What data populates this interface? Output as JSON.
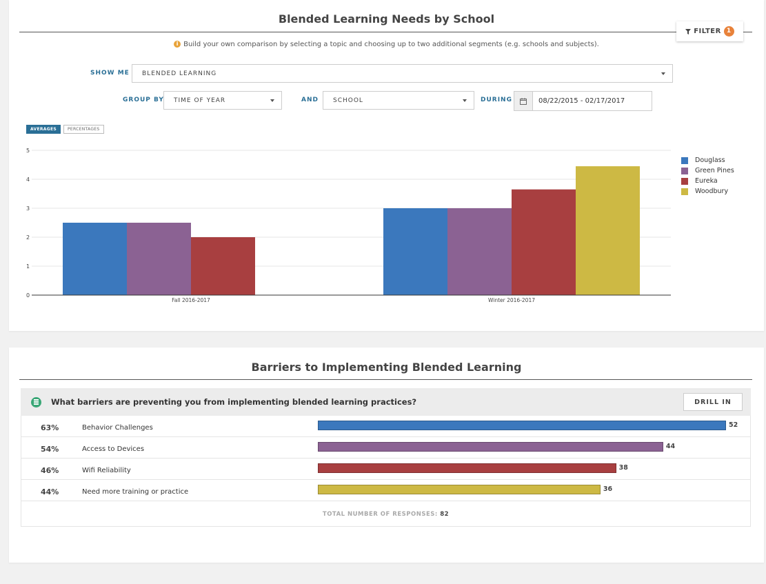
{
  "panel1": {
    "title": "Blended Learning Needs by School",
    "filter": {
      "label": "FILTER",
      "badge": "1",
      "icon": "funnel-icon"
    },
    "info_text": "Build your own comparison by selecting a topic and choosing up to two additional segments (e.g. schools and subjects).",
    "show_me": {
      "label": "SHOW ME",
      "value": "BLENDED LEARNING"
    },
    "group_by": {
      "label": "GROUP BY",
      "value": "TIME OF YEAR"
    },
    "and": {
      "label": "AND",
      "value": "SCHOOL"
    },
    "during": {
      "label": "DURING",
      "value": "08/22/2015 - 02/17/2017",
      "icon": "calendar-icon"
    },
    "toggles": {
      "averages": "AVERAGES",
      "percentages": "PERCENTAGES",
      "active": "averages"
    }
  },
  "chart_data": {
    "type": "bar",
    "categories": [
      "Fall 2016-2017",
      "Winter 2016-2017"
    ],
    "series": [
      {
        "name": "Douglass",
        "color": "#3b78bd",
        "values": [
          2.5,
          3.0
        ]
      },
      {
        "name": "Green Pines",
        "color": "#8b6293",
        "values": [
          2.5,
          3.0
        ]
      },
      {
        "name": "Eureka",
        "color": "#a83f40",
        "values": [
          2.0,
          3.65
        ]
      },
      {
        "name": "Woodbury",
        "color": "#cdb944",
        "values": [
          null,
          4.45
        ]
      }
    ],
    "ylim": [
      0,
      5
    ],
    "yticks": [
      "0",
      "1",
      "2",
      "3",
      "4",
      "5"
    ],
    "grid": true,
    "legend": "right"
  },
  "panel2": {
    "title": "Barriers to Implementing Blended Learning",
    "question": "What barriers are preventing you from implementing blended learning practices?",
    "drill_label": "DRILL IN",
    "rows": [
      {
        "pct": "63%",
        "label": "Behavior Challenges",
        "count": "52",
        "value": 52,
        "color": "#3b78bd"
      },
      {
        "pct": "54%",
        "label": "Access to Devices",
        "count": "44",
        "value": 44,
        "color": "#8b6293"
      },
      {
        "pct": "46%",
        "label": "Wifi Reliability",
        "count": "38",
        "value": 38,
        "color": "#a83f40"
      },
      {
        "pct": "44%",
        "label": "Need more training or practice",
        "count": "36",
        "value": 36,
        "color": "#cdb944"
      }
    ],
    "total_label": "TOTAL NUMBER OF RESPONSES:",
    "total_value": "82"
  }
}
